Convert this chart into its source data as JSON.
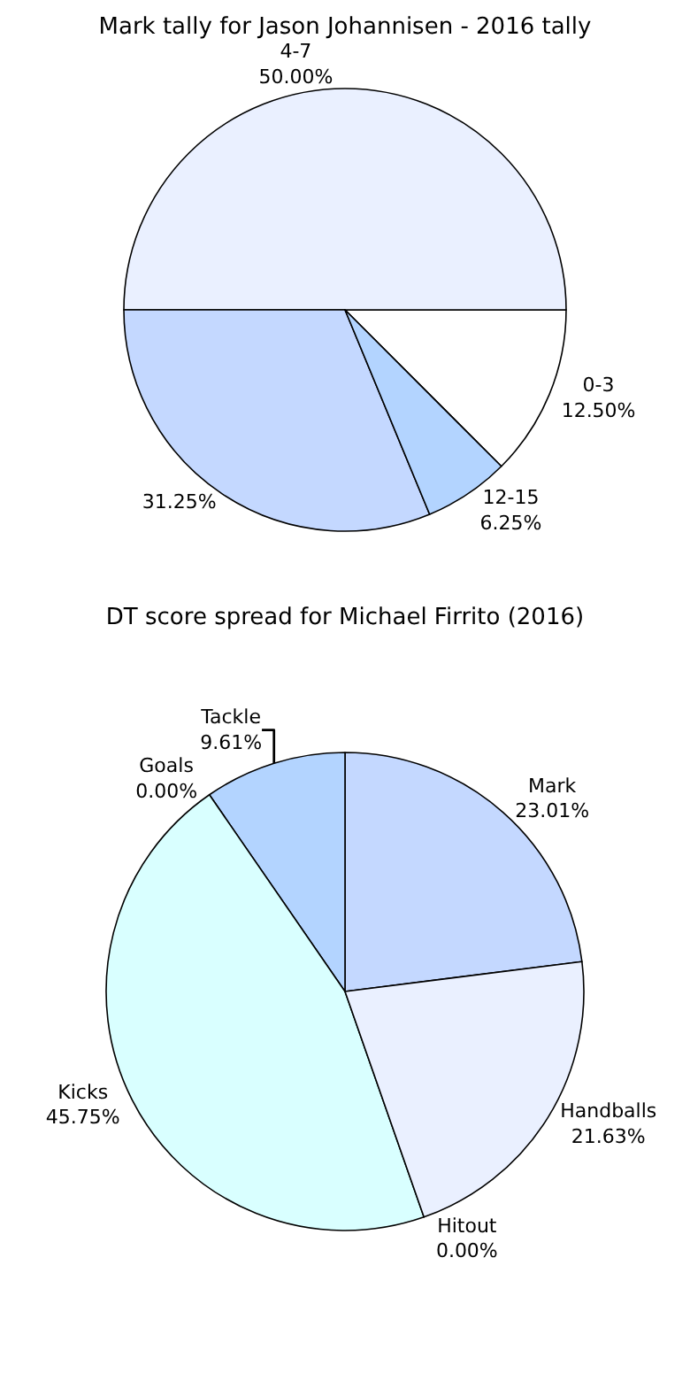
{
  "chart_data": [
    {
      "type": "pie",
      "title": "Mark tally for Jason Johannisen - 2016 tally",
      "categories": [
        "0-3",
        "4-7",
        null,
        "12-15"
      ],
      "values": [
        12.5,
        50,
        31.25,
        6.25
      ],
      "value_labels": [
        "12.50%",
        "50.00%",
        "31.25%",
        "6.25%"
      ],
      "colors": [
        "#ffffff",
        "#eaf0ff",
        "#c4d8ff",
        "#b3d4ff"
      ]
    },
    {
      "type": "pie",
      "title": "DT score spread for Michael Firrito (2016)",
      "categories": [
        "Mark",
        "Tackle",
        "Goals",
        "Kicks",
        "Hitout",
        "Handballs"
      ],
      "values": [
        23.01,
        9.61,
        0,
        45.75,
        0,
        21.63
      ],
      "value_labels": [
        "23.01%",
        "9.61%",
        "0.00%",
        "45.75%",
        "0.00%",
        "21.63%"
      ],
      "colors": [
        "#c4d8ff",
        "#b3d4ff",
        "#ffffff",
        "#d9ffff",
        "#ffffff",
        "#eaf0ff"
      ]
    }
  ]
}
